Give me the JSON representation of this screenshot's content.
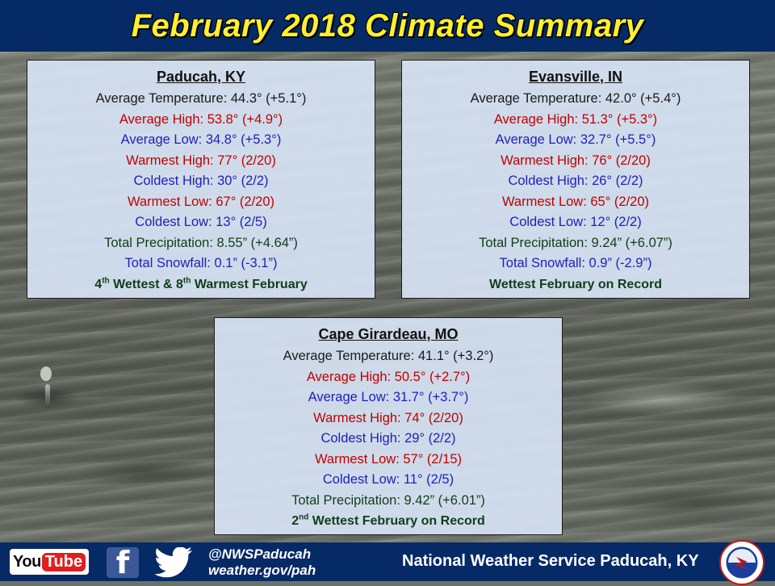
{
  "header": {
    "title": "February 2018 Climate Summary"
  },
  "stations": {
    "paducah": {
      "name": "Paducah, KY",
      "avg_temp": "Average Temperature: 44.3° (+5.1°)",
      "avg_high": "Average High: 53.8° (+4.9°)",
      "avg_low": "Average Low: 34.8° (+5.3°)",
      "warmest_high": "Warmest High: 77° (2/20)",
      "coldest_high": "Coldest High: 30° (2/2)",
      "warmest_low": "Warmest Low: 67° (2/20)",
      "coldest_low": "Coldest Low: 13° (2/5)",
      "precip": "Total Precipitation: 8.55” (+4.64”)",
      "snow": "Total Snowfall: 0.1” (-3.1”)",
      "note_part1": "4",
      "note_sup1": "th",
      "note_part2": " Wettest & 8",
      "note_sup2": "th",
      "note_part3": " Warmest February"
    },
    "evansville": {
      "name": "Evansville, IN",
      "avg_temp": "Average Temperature: 42.0° (+5.4°)",
      "avg_high": "Average High: 51.3° (+5.3°)",
      "avg_low": "Average Low: 32.7° (+5.5°)",
      "warmest_high": "Warmest High: 76° (2/20)",
      "coldest_high": "Coldest High: 26° (2/2)",
      "warmest_low": "Warmest Low: 65° (2/20)",
      "coldest_low": "Coldest Low: 12° (2/2)",
      "precip": "Total Precipitation: 9.24” (+6.07”)",
      "snow": "Total Snowfall: 0.9” (-2.9”)",
      "note": "Wettest February on Record"
    },
    "cape": {
      "name": "Cape Girardeau, MO",
      "avg_temp": "Average Temperature: 41.1° (+3.2°)",
      "avg_high": "Average High: 50.5° (+2.7°)",
      "avg_low": "Average Low: 31.7° (+3.7°)",
      "warmest_high": "Warmest High: 74° (2/20)",
      "coldest_high": "Coldest High: 29° (2/2)",
      "warmest_low": "Warmest Low: 57° (2/15)",
      "coldest_low": "Coldest Low: 11° (2/5)",
      "precip": "Total Precipitation: 9.42” (+6.01”)",
      "note_part1": "2",
      "note_sup1": "nd",
      "note_part2": " Wettest February on Record"
    }
  },
  "footer": {
    "youtube_you": "You",
    "youtube_tube": "Tube",
    "facebook_glyph": "f",
    "handle": "@NWSPaducah",
    "website": "weather.gov/pah",
    "office": "National Weather Service Paducah, KY"
  },
  "colors": {
    "header_bg": "#062a66",
    "title": "#ffef2e",
    "warm_text": "#c00000",
    "cold_text": "#1f1fb8",
    "precip_text": "#113d1a"
  },
  "icons": [
    "youtube-icon",
    "facebook-icon",
    "twitter-icon",
    "nws-logo-icon"
  ]
}
